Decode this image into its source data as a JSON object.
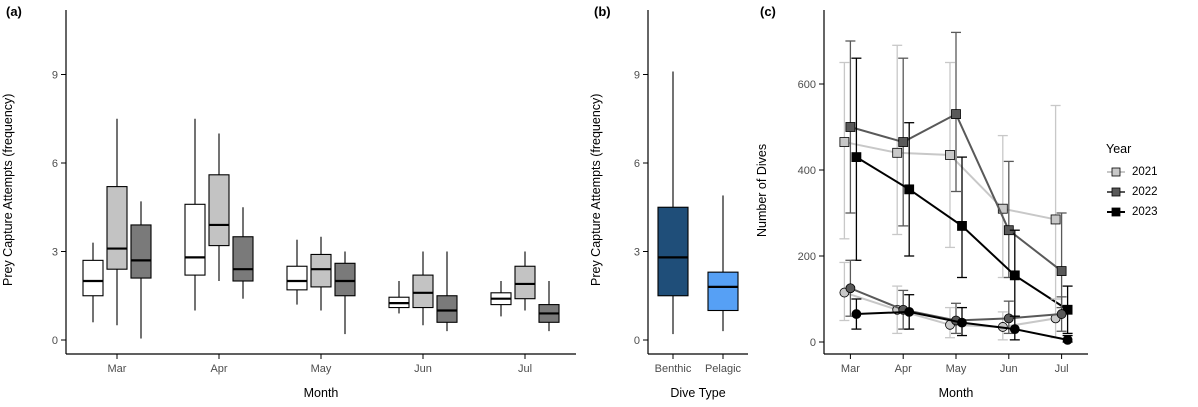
{
  "colors": {
    "axis_text": "#4d4d4d",
    "axis_line": "#000000",
    "background": "#ffffff"
  },
  "box_stats_order": [
    "whisker_low",
    "q1",
    "median",
    "q3",
    "whisker_high"
  ],
  "chart_data": [
    {
      "id": "a",
      "type": "boxplot",
      "panel_label": "(a)",
      "xlabel": "Month",
      "ylabel": "Prey Capture Attempts (frequency)",
      "categories": [
        "Mar",
        "Apr",
        "May",
        "Jun",
        "Jul"
      ],
      "yticks": [
        0,
        3,
        6,
        9
      ],
      "ylim": [
        -0.45,
        11.2
      ],
      "grid": false,
      "series": [
        {
          "name": "group-1-white",
          "fill": "#ffffff",
          "boxes": [
            [
              0.6,
              1.5,
              2.0,
              2.7,
              3.3
            ],
            [
              1.0,
              2.2,
              2.8,
              4.6,
              7.5
            ],
            [
              1.2,
              1.7,
              2.0,
              2.5,
              3.4
            ],
            [
              0.9,
              1.1,
              1.25,
              1.45,
              2.0
            ],
            [
              0.8,
              1.2,
              1.4,
              1.6,
              2.0
            ]
          ]
        },
        {
          "name": "group-2-lightgray",
          "fill": "#c3c3c3",
          "boxes": [
            [
              0.5,
              2.4,
              3.1,
              5.2,
              7.5
            ],
            [
              2.0,
              3.2,
              3.9,
              5.6,
              7.0
            ],
            [
              1.0,
              1.8,
              2.4,
              2.9,
              3.5
            ],
            [
              0.5,
              1.1,
              1.6,
              2.2,
              3.0
            ],
            [
              1.0,
              1.4,
              1.9,
              2.5,
              3.0
            ]
          ]
        },
        {
          "name": "group-3-darkgray",
          "fill": "#7a7a7a",
          "boxes": [
            [
              0.05,
              2.1,
              2.7,
              3.9,
              4.7
            ],
            [
              1.4,
              2.0,
              2.4,
              3.5,
              4.5
            ],
            [
              0.2,
              1.5,
              2.0,
              2.6,
              3.0
            ],
            [
              0.3,
              0.6,
              1.0,
              1.5,
              3.0
            ],
            [
              0.3,
              0.6,
              0.9,
              1.2,
              2.0
            ]
          ]
        }
      ]
    },
    {
      "id": "b",
      "type": "boxplot",
      "panel_label": "(b)",
      "xlabel": "Dive Type",
      "ylabel": "Prey Capture Attempts (frequency)",
      "categories": [
        "Benthic",
        "Pelagic"
      ],
      "yticks": [
        0,
        3,
        6,
        9
      ],
      "ylim": [
        -0.45,
        11.2
      ],
      "grid": false,
      "series": [
        {
          "name": "dive-type",
          "fills": [
            "#1f4e79",
            "#56a0f5"
          ],
          "boxes": [
            [
              0.2,
              1.5,
              2.8,
              4.5,
              9.1
            ],
            [
              0.3,
              1.0,
              1.8,
              2.3,
              4.9
            ]
          ]
        }
      ]
    },
    {
      "id": "c",
      "type": "line",
      "panel_label": "(c)",
      "xlabel": "Month",
      "ylabel": "Number of Dives",
      "categories": [
        "Mar",
        "Apr",
        "May",
        "Jun",
        "Jul"
      ],
      "yticks": [
        0,
        200,
        400,
        600
      ],
      "ylim": [
        -30,
        760
      ],
      "grid": false,
      "legend": {
        "title": "Year",
        "position": "right",
        "entries": [
          {
            "label": "2021",
            "color": "#c8c8c8"
          },
          {
            "label": "2022",
            "color": "#595959"
          },
          {
            "label": "2023",
            "color": "#000000"
          }
        ]
      },
      "series": [
        {
          "name": "2021-square",
          "marker": "square",
          "color": "#c8c8c8",
          "values": [
            465,
            440,
            435,
            310,
            285
          ],
          "err_low": [
            240,
            250,
            220,
            150,
            100
          ],
          "err_high": [
            650,
            690,
            650,
            480,
            550
          ]
        },
        {
          "name": "2022-square",
          "marker": "square",
          "color": "#595959",
          "values": [
            500,
            465,
            530,
            260,
            165
          ],
          "err_low": [
            300,
            270,
            350,
            150,
            80
          ],
          "err_high": [
            700,
            660,
            720,
            420,
            300
          ]
        },
        {
          "name": "2023-square",
          "marker": "square",
          "color": "#000000",
          "values": [
            430,
            355,
            270,
            155,
            75
          ],
          "err_low": [
            190,
            200,
            150,
            60,
            20
          ],
          "err_high": [
            660,
            510,
            430,
            260,
            130
          ]
        },
        {
          "name": "2021-circle",
          "marker": "circle",
          "color": "#c8c8c8",
          "values": [
            115,
            75,
            40,
            35,
            55
          ],
          "err_low": [
            50,
            20,
            10,
            5,
            10
          ],
          "err_high": [
            185,
            130,
            80,
            70,
            100
          ]
        },
        {
          "name": "2022-circle",
          "marker": "circle",
          "color": "#595959",
          "values": [
            125,
            75,
            50,
            55,
            65
          ],
          "err_low": [
            60,
            30,
            20,
            20,
            25
          ],
          "err_high": [
            190,
            120,
            90,
            95,
            105
          ]
        },
        {
          "name": "2023-circle",
          "marker": "circle",
          "color": "#000000",
          "values": [
            65,
            70,
            45,
            30,
            5
          ],
          "err_low": [
            30,
            30,
            15,
            5,
            0
          ],
          "err_high": [
            100,
            110,
            80,
            60,
            15
          ]
        }
      ]
    }
  ]
}
